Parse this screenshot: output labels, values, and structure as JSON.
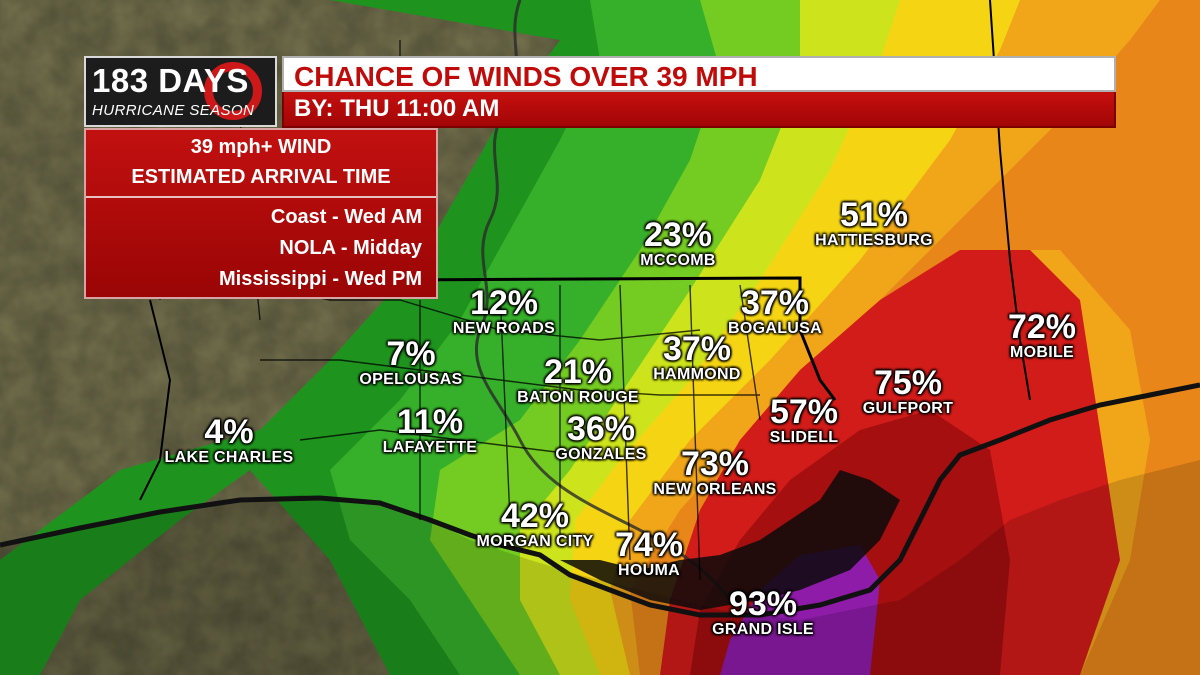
{
  "logo": {
    "main": "183 DAYS",
    "sub": "HURRICANE SEASON"
  },
  "title": "CHANCE OF WINDS OVER 39 MPH",
  "subtitle": "BY:  THU 11:00 AM",
  "info": {
    "line1": "39 mph+ WIND",
    "line2": "ESTIMATED ARRIVAL TIME",
    "items": [
      "Coast - Wed AM",
      "NOLA - Midday",
      "Mississippi - Wed PM"
    ]
  },
  "cities": [
    {
      "name": "LAKE CHARLES",
      "pct": "4%"
    },
    {
      "name": "OPELOUSAS",
      "pct": "7%"
    },
    {
      "name": "LAFAYETTE",
      "pct": "11%"
    },
    {
      "name": "NEW ROADS",
      "pct": "12%"
    },
    {
      "name": "BATON ROUGE",
      "pct": "21%"
    },
    {
      "name": "MCCOMB",
      "pct": "23%"
    },
    {
      "name": "GONZALES",
      "pct": "36%"
    },
    {
      "name": "HAMMOND",
      "pct": "37%"
    },
    {
      "name": "BOGALUSA",
      "pct": "37%"
    },
    {
      "name": "MORGAN CITY",
      "pct": "42%"
    },
    {
      "name": "HATTIESBURG",
      "pct": "51%"
    },
    {
      "name": "SLIDELL",
      "pct": "57%"
    },
    {
      "name": "NEW ORLEANS",
      "pct": "73%"
    },
    {
      "name": "HOUMA",
      "pct": "74%"
    },
    {
      "name": "MOBILE",
      "pct": "72%"
    },
    {
      "name": "GULFPORT",
      "pct": "75%"
    },
    {
      "name": "GRAND ISLE",
      "pct": "93%"
    }
  ],
  "colors": {
    "band_0_10": "#1f9a1f",
    "band_10_20": "#3cb82a",
    "band_20_30": "#7ed321",
    "band_30_40": "#d8e81a",
    "band_40_50": "#f5d312",
    "band_50_60": "#f0a018",
    "band_60_70": "#e36a14",
    "band_70_80": "#d01b1b",
    "band_80_90": "#9e0d0d",
    "band_90_100": "#8a1aa8",
    "header_red": "#c00b0b"
  }
}
